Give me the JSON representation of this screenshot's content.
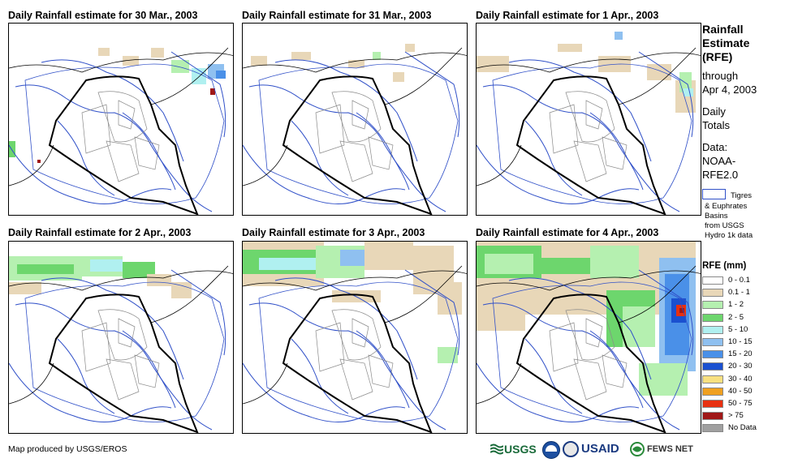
{
  "panels": [
    {
      "title": "Daily Rainfall estimate for 30 Mar., 2003"
    },
    {
      "title": "Daily Rainfall estimate for 31 Mar., 2003"
    },
    {
      "title": "Daily Rainfall estimate for 1 Apr., 2003"
    },
    {
      "title": "Daily Rainfall estimate for 2 Apr., 2003"
    },
    {
      "title": "Daily Rainfall estimate for 3 Apr., 2003"
    },
    {
      "title": "Daily Rainfall estimate for 4 Apr., 2003"
    }
  ],
  "sidebar": {
    "title_line1": "Rainfall",
    "title_line2": "Estimate",
    "title_line3": "(RFE)",
    "through": "through",
    "date": "Apr 4, 2003",
    "daily": "Daily",
    "totals": "Totals",
    "data_label": "Data:",
    "data_src1": "NOAA-",
    "data_src2": "RFE2.0",
    "basin_l1": "Tigres",
    "basin_l2": "& Euphrates",
    "basin_l3": "Basins",
    "basin_l4": "from USGS",
    "basin_l5": "Hydro 1k data"
  },
  "legend": {
    "title": "RFE (mm)",
    "items": [
      {
        "label": "0 - 0.1",
        "color": "#ffffff"
      },
      {
        "label": "0.1 - 1",
        "color": "#e8d7b8"
      },
      {
        "label": "1 - 2",
        "color": "#b5f0b0"
      },
      {
        "label": "2 - 5",
        "color": "#6dd66d"
      },
      {
        "label": "5 - 10",
        "color": "#b0f0f0"
      },
      {
        "label": "10 - 15",
        "color": "#8fc0f0"
      },
      {
        "label": "15 - 20",
        "color": "#4a90e8"
      },
      {
        "label": "20 - 30",
        "color": "#1a50d0"
      },
      {
        "label": "30 - 40",
        "color": "#f8e080"
      },
      {
        "label": "40 - 50",
        "color": "#f0a020"
      },
      {
        "label": "50 - 75",
        "color": "#e83010"
      },
      {
        "label": "> 75",
        "color": "#a01818"
      },
      {
        "label": "No Data",
        "color": "#a0a0a0"
      }
    ]
  },
  "footer": {
    "credit": "Map produced by USGS/EROS",
    "usgs": "USGS",
    "usaid": "USAID",
    "fews": "FEWS NET"
  },
  "colors": {
    "river": "#3050c8",
    "border": "#000000",
    "province": "#8a8a8a"
  }
}
